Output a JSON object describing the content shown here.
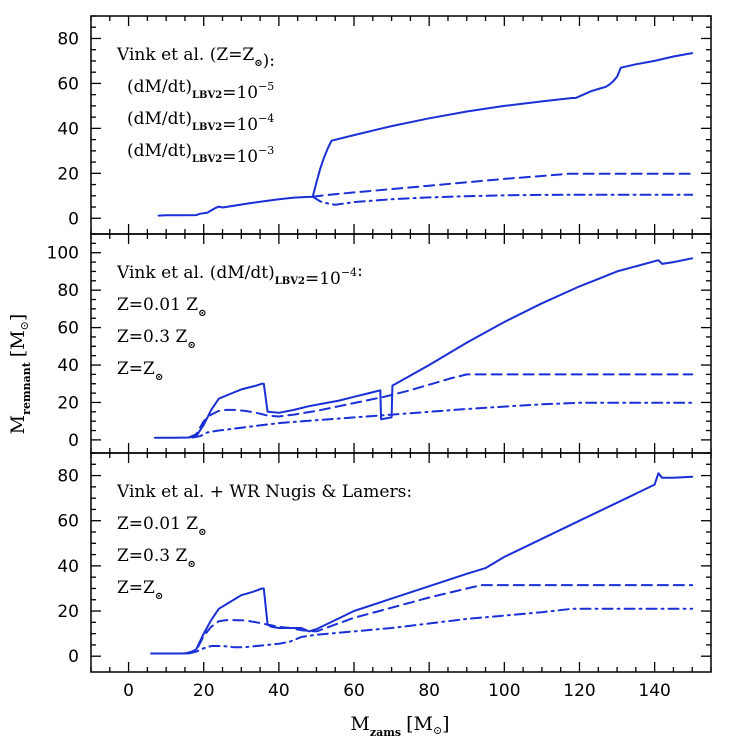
{
  "colors": {
    "series": "#1a2fd6",
    "axis": "#000000"
  },
  "xaxis": {
    "label_main": "M",
    "label_sub": "zams",
    "label_unit": "[M",
    "label_unit_end": "]",
    "ticks": [
      "0",
      "20",
      "40",
      "60",
      "80",
      "100",
      "120",
      "140"
    ]
  },
  "yaxis": {
    "label_main": "M",
    "label_sub": "remnant",
    "label_unit": "[M",
    "label_unit_end": "]"
  },
  "chart_data": [
    {
      "type": "line",
      "xlim": [
        -10,
        155
      ],
      "ylim": [
        -7,
        90
      ],
      "yticks": [
        "0",
        "20",
        "40",
        "60",
        "80"
      ],
      "legend": {
        "lines": [
          [
            {
              "t": "Vink et al. (Z=Z"
            },
            {
              "t": "⊙",
              "sub": true
            },
            {
              "t": "):"
            }
          ],
          [
            {
              "t": "(dM/dt)"
            },
            {
              "t": "LBV2",
              "sub": true
            },
            {
              "t": "=10"
            },
            {
              "t": "−5",
              "sup": true
            }
          ],
          [
            {
              "t": "(dM/dt)"
            },
            {
              "t": "LBV2",
              "sub": true
            },
            {
              "t": "=10"
            },
            {
              "t": "−4",
              "sup": true
            }
          ],
          [
            {
              "t": "(dM/dt)"
            },
            {
              "t": "LBV2",
              "sub": true
            },
            {
              "t": "=10"
            },
            {
              "t": "−3",
              "sup": true
            }
          ]
        ]
      },
      "series": [
        {
          "style": "solid",
          "x": [
            8,
            10,
            14,
            18,
            19,
            21,
            22,
            23,
            24,
            25,
            28,
            32,
            36,
            40,
            44,
            48,
            49,
            50,
            51,
            52,
            53,
            54,
            60,
            70,
            80,
            90,
            100,
            110,
            118,
            119,
            121,
            123,
            125,
            127,
            128,
            129,
            130,
            131,
            135,
            140,
            145,
            150
          ],
          "y": [
            1.2,
            1.3,
            1.3,
            1.4,
            2.0,
            2.5,
            3.5,
            4.5,
            5.2,
            4.8,
            5.6,
            6.6,
            7.6,
            8.5,
            9.2,
            9.5,
            9.6,
            16,
            22,
            27,
            31,
            34.5,
            37,
            41,
            44.5,
            47.5,
            50,
            52,
            53.5,
            53.5,
            55,
            56.5,
            57.5,
            58.5,
            59.5,
            61,
            63,
            67,
            68.5,
            70,
            72,
            73.5
          ]
        },
        {
          "style": "dashed",
          "x": [
            49,
            52,
            60,
            70,
            80,
            90,
            100,
            110,
            117,
            125,
            135,
            150
          ],
          "y": [
            9.6,
            10.2,
            11.5,
            13,
            14.5,
            16,
            17.5,
            18.8,
            19.8,
            19.8,
            19.8,
            19.8
          ]
        },
        {
          "style": "dashdot",
          "x": [
            49,
            51,
            53,
            55,
            60,
            70,
            80,
            90,
            100,
            110,
            120,
            130,
            150
          ],
          "y": [
            9.6,
            7.5,
            6.6,
            6.0,
            7.2,
            8.5,
            9.3,
            9.8,
            10.2,
            10.4,
            10.5,
            10.5,
            10.5
          ]
        }
      ]
    },
    {
      "type": "line",
      "xlim": [
        -10,
        155
      ],
      "ylim": [
        -7,
        110
      ],
      "yticks": [
        "0",
        "20",
        "40",
        "60",
        "80",
        "100"
      ],
      "legend": {
        "lines": [
          [
            {
              "t": "Vink et al. (dM/dt)"
            },
            {
              "t": "LBV2",
              "sub": true
            },
            {
              "t": "=10"
            },
            {
              "t": "−4",
              "sup": true
            },
            {
              "t": ":"
            }
          ],
          [
            {
              "t": "Z=0.01 Z"
            },
            {
              "t": "⊙",
              "sub": true
            }
          ],
          [
            {
              "t": "Z=0.3 Z"
            },
            {
              "t": "⊙",
              "sub": true
            }
          ],
          [
            {
              "t": "Z=Z"
            },
            {
              "t": "⊙",
              "sub": true
            }
          ]
        ]
      },
      "series": [
        {
          "style": "solid",
          "x": [
            7,
            12,
            16,
            18,
            20,
            22,
            24,
            27,
            30,
            34,
            35.5,
            36,
            37,
            40,
            44,
            48,
            52,
            56,
            60,
            64,
            67,
            67.2,
            70,
            70.2,
            72,
            80,
            90,
            100,
            110,
            120,
            130,
            141,
            142,
            145,
            150
          ],
          "y": [
            1.2,
            1.2,
            1.3,
            2,
            8,
            16,
            22,
            24.5,
            27,
            29,
            30,
            30,
            15,
            14.5,
            16,
            18,
            19.5,
            21,
            23,
            25,
            26.5,
            11,
            12,
            29,
            31,
            40,
            52,
            63,
            73,
            82,
            90,
            96,
            94,
            95,
            97
          ]
        },
        {
          "style": "dashed",
          "x": [
            16,
            18,
            20,
            22,
            24,
            26,
            28,
            31,
            34,
            37,
            40,
            44,
            50,
            56,
            62,
            68,
            74,
            80,
            86,
            90,
            95,
            100,
            120,
            150
          ],
          "y": [
            1.3,
            3,
            10,
            13.5,
            15.5,
            16,
            16,
            15.5,
            14.5,
            13,
            12.5,
            13.5,
            15.5,
            18,
            20.5,
            23,
            26,
            29.5,
            33,
            35,
            35,
            35,
            35,
            35
          ]
        },
        {
          "style": "dashdot",
          "x": [
            17,
            19,
            21,
            24,
            28,
            32,
            36,
            40,
            45,
            50,
            60,
            70,
            80,
            90,
            100,
            110,
            120,
            135,
            150
          ],
          "y": [
            1.3,
            2,
            4,
            5,
            6,
            7,
            8,
            9,
            9.8,
            10.5,
            12,
            13.5,
            15,
            16.5,
            17.8,
            19,
            19.8,
            19.8,
            19.8
          ]
        }
      ]
    },
    {
      "type": "line",
      "xlim": [
        -10,
        155
      ],
      "ylim": [
        -7,
        90
      ],
      "yticks": [
        "0",
        "20",
        "40",
        "60",
        "80"
      ],
      "legend": {
        "lines": [
          [
            {
              "t": "Vink et al. + WR Nugis & Lamers:"
            }
          ],
          [
            {
              "t": "Z=0.01 Z"
            },
            {
              "t": "⊙",
              "sub": true
            }
          ],
          [
            {
              "t": "Z=0.3 Z"
            },
            {
              "t": "⊙",
              "sub": true
            }
          ],
          [
            {
              "t": "Z=Z"
            },
            {
              "t": "⊙",
              "sub": true
            }
          ]
        ]
      },
      "series": [
        {
          "style": "solid",
          "x": [
            6,
            10,
            14,
            16,
            18,
            20,
            22,
            24,
            27,
            30,
            33,
            35.5,
            36,
            37,
            38,
            40,
            44,
            46,
            48,
            50,
            55,
            60,
            70,
            80,
            90,
            95,
            100,
            110,
            120,
            130,
            140,
            141,
            142,
            145,
            150
          ],
          "y": [
            1.2,
            1.2,
            1.2,
            1.3,
            3,
            10,
            16,
            21,
            24,
            27,
            28.5,
            30,
            30,
            14,
            13,
            12.5,
            12.5,
            12.5,
            11,
            12,
            16,
            20,
            25.5,
            31,
            36.5,
            39,
            44,
            52,
            60,
            68,
            76,
            81,
            79,
            79,
            79.5
          ]
        },
        {
          "style": "dashed",
          "x": [
            15,
            18,
            20,
            22,
            24,
            26,
            28,
            31,
            34,
            37,
            40,
            43,
            46,
            50,
            55,
            60,
            70,
            80,
            90,
            94,
            100,
            120,
            150
          ],
          "y": [
            1.2,
            2.5,
            9,
            13,
            15.5,
            16,
            16,
            15.8,
            15,
            14,
            13,
            12.5,
            11.5,
            11,
            14,
            17,
            21.5,
            26,
            30,
            31.5,
            31.5,
            31.5,
            31.5
          ]
        },
        {
          "style": "dashdot",
          "x": [
            16,
            18,
            20,
            22,
            25,
            28,
            31,
            34,
            37,
            40,
            43,
            46,
            50,
            60,
            70,
            80,
            90,
            100,
            110,
            118,
            130,
            150
          ],
          "y": [
            1.2,
            2,
            3.5,
            4.5,
            4.5,
            4,
            4,
            4.5,
            5,
            5.5,
            6.5,
            8.5,
            9.5,
            11,
            12.5,
            14.5,
            16.5,
            18,
            19.5,
            21,
            21,
            21
          ]
        }
      ]
    }
  ]
}
